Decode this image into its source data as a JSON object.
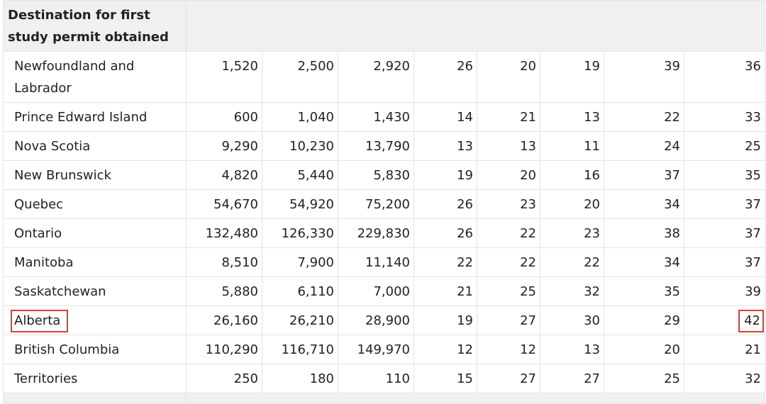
{
  "table": {
    "header": "Destination for first study permit obtained",
    "rows": [
      {
        "name": "Newfoundland and Labrador",
        "values": [
          "1,520",
          "2,500",
          "2,920",
          "26",
          "20",
          "19",
          "39",
          "36"
        ]
      },
      {
        "name": "Prince Edward Island",
        "values": [
          "600",
          "1,040",
          "1,430",
          "14",
          "21",
          "13",
          "22",
          "33"
        ]
      },
      {
        "name": "Nova Scotia",
        "values": [
          "9,290",
          "10,230",
          "13,790",
          "13",
          "13",
          "11",
          "24",
          "25"
        ]
      },
      {
        "name": "New Brunswick",
        "values": [
          "4,820",
          "5,440",
          "5,830",
          "19",
          "20",
          "16",
          "37",
          "35"
        ]
      },
      {
        "name": "Quebec",
        "values": [
          "54,670",
          "54,920",
          "75,200",
          "26",
          "23",
          "20",
          "34",
          "37"
        ]
      },
      {
        "name": "Ontario",
        "values": [
          "132,480",
          "126,330",
          "229,830",
          "26",
          "22",
          "23",
          "38",
          "37"
        ]
      },
      {
        "name": "Manitoba",
        "values": [
          "8,510",
          "7,900",
          "11,140",
          "22",
          "22",
          "22",
          "34",
          "37"
        ]
      },
      {
        "name": "Saskatchewan",
        "values": [
          "5,880",
          "6,110",
          "7,000",
          "21",
          "25",
          "32",
          "35",
          "39"
        ]
      },
      {
        "name": "Alberta",
        "values": [
          "26,160",
          "26,210",
          "28,900",
          "19",
          "27",
          "30",
          "29",
          "42"
        ]
      },
      {
        "name": "British Columbia",
        "values": [
          "110,290",
          "116,710",
          "149,970",
          "12",
          "12",
          "13",
          "20",
          "21"
        ]
      },
      {
        "name": "Territories",
        "values": [
          "250",
          "180",
          "110",
          "15",
          "27",
          "27",
          "25",
          "32"
        ]
      }
    ]
  },
  "highlight_color": "#e03a3a"
}
